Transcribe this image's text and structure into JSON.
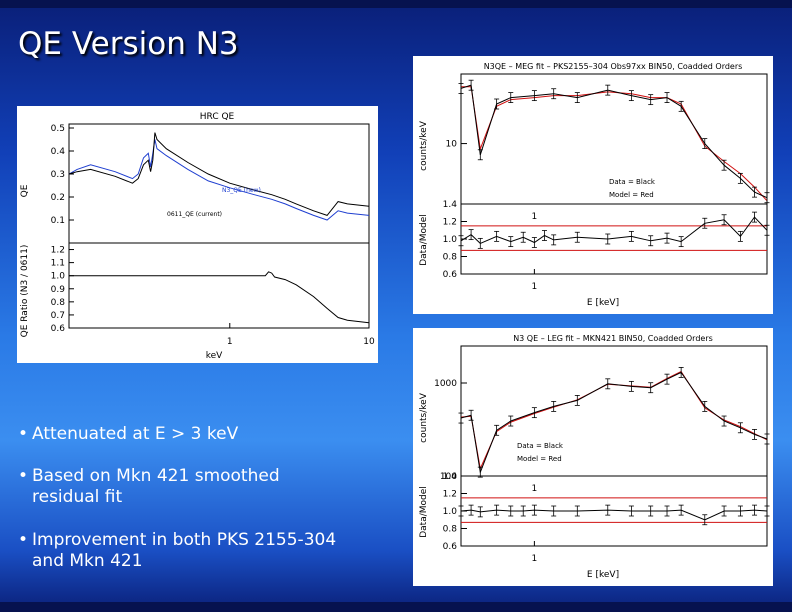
{
  "slide": {
    "title": "QE Version N3",
    "bullets": [
      "Attenuated at E > 3 keV",
      "Based on Mkn 421 smoothed residual fit",
      "Improvement in both PKS 2155-304 and Mkn 421"
    ]
  },
  "chart_data": [
    {
      "type": "line",
      "title": "HRC QE",
      "xlabel": "keV",
      "x_scale": "log",
      "xlim": [
        0.07,
        10
      ],
      "x_tick_labels": [
        "1",
        "10"
      ],
      "top": {
        "ylabel": "QE",
        "ylim": [
          0,
          0.5
        ],
        "y_tick_labels": [
          "0.5",
          "0.4",
          "0.3",
          "0.2",
          "0.1"
        ],
        "series": [
          {
            "name": "N3_QE (new)",
            "color": "#1f3fd0",
            "x": [
              0.07,
              0.08,
              0.1,
              0.15,
              0.2,
              0.22,
              0.24,
              0.26,
              0.27,
              0.28,
              0.29,
              0.3,
              0.35,
              0.5,
              0.7,
              1.0,
              1.5,
              2.0,
              2.5,
              3.0,
              4.0,
              5.0,
              6.0,
              7.0,
              10.0
            ],
            "y": [
              0.3,
              0.32,
              0.34,
              0.31,
              0.28,
              0.3,
              0.37,
              0.39,
              0.33,
              0.39,
              0.45,
              0.41,
              0.38,
              0.32,
              0.27,
              0.24,
              0.21,
              0.19,
              0.17,
              0.15,
              0.12,
              0.1,
              0.14,
              0.13,
              0.12
            ]
          },
          {
            "name": "0611_QE (current)",
            "color": "#000000",
            "x": [
              0.07,
              0.08,
              0.1,
              0.15,
              0.2,
              0.22,
              0.24,
              0.26,
              0.27,
              0.28,
              0.29,
              0.3,
              0.35,
              0.5,
              0.7,
              1.0,
              1.5,
              2.0,
              2.5,
              3.0,
              4.0,
              5.0,
              6.0,
              7.0,
              10.0
            ],
            "y": [
              0.3,
              0.31,
              0.32,
              0.29,
              0.26,
              0.28,
              0.34,
              0.36,
              0.31,
              0.36,
              0.48,
              0.45,
              0.41,
              0.35,
              0.3,
              0.26,
              0.23,
              0.21,
              0.19,
              0.17,
              0.14,
              0.12,
              0.18,
              0.17,
              0.16
            ]
          }
        ]
      },
      "bottom": {
        "ylabel": "QE Ratio (N3 / 0611)",
        "ylim": [
          0.6,
          1.25
        ],
        "y_tick_labels": [
          "1.2",
          "1.1",
          "1.0",
          "0.9",
          "0.8",
          "0.7",
          "0.6"
        ],
        "series": [
          {
            "name": "ratio",
            "color": "#000000",
            "x": [
              0.07,
              0.1,
              0.2,
              0.5,
              1.0,
              1.5,
              1.8,
              1.9,
              2.0,
              2.1,
              2.5,
              3.0,
              4.0,
              5.0,
              6.0,
              7.0,
              10.0
            ],
            "y": [
              1.0,
              1.0,
              1.0,
              1.0,
              1.0,
              1.0,
              1.0,
              1.03,
              1.02,
              0.99,
              0.97,
              0.93,
              0.84,
              0.75,
              0.68,
              0.66,
              0.64
            ]
          }
        ]
      }
    },
    {
      "type": "line",
      "title": "N3QE – MEG fit – PKS2155–304 Obs97xx BIN50, Coadded Orders",
      "xlabel": "E [keV]",
      "x_scale": "log",
      "xlim": [
        0.5,
        9
      ],
      "legend": [
        "Data = Black",
        "Model = Red"
      ],
      "top": {
        "ylabel": "counts/keV",
        "y_scale": "log",
        "ylim": [
          3,
          40
        ],
        "y_tick_labels": [
          "10"
        ],
        "series": [
          {
            "name": "Data",
            "color": "#000000",
            "x": [
              0.5,
              0.55,
              0.6,
              0.7,
              0.8,
              1.0,
              1.2,
              1.5,
              2.0,
              2.5,
              3.0,
              3.5,
              4.0,
              5.0,
              6.0,
              7.0,
              8.0,
              9.0
            ],
            "y": [
              30,
              32,
              8,
              22,
              25,
              26,
              27,
              25,
              29,
              26,
              24,
              25,
              21,
              10,
              6.5,
              5,
              3.8,
              3.4
            ]
          },
          {
            "name": "Model",
            "color": "#d01010",
            "x": [
              0.5,
              0.55,
              0.6,
              0.7,
              0.8,
              1.0,
              1.2,
              1.5,
              2.0,
              2.5,
              3.0,
              3.5,
              4.0,
              5.0,
              6.0,
              7.0,
              8.0,
              9.0
            ],
            "y": [
              31,
              31,
              9,
              21,
              24,
              25,
              26,
              26,
              28,
              27,
              25,
              25,
              22,
              9.5,
              7,
              5.5,
              4.2,
              3.2
            ]
          }
        ]
      },
      "bottom": {
        "ylabel": "Data/Model",
        "ylim": [
          0.6,
          1.4
        ],
        "y_tick_labels": [
          "1.4",
          "1.2",
          "1.0",
          "0.8",
          "0.6"
        ],
        "ref_lines": [
          0.87,
          1.15
        ],
        "top_tick_label": "1",
        "x_tick_label": "1",
        "series": [
          {
            "name": "ratio",
            "color": "#000000",
            "x": [
              0.5,
              0.55,
              0.6,
              0.7,
              0.8,
              0.9,
              1.0,
              1.1,
              1.2,
              1.5,
              2.0,
              2.5,
              3.0,
              3.5,
              4.0,
              5.0,
              6.0,
              7.0,
              8.0,
              9.0
            ],
            "y": [
              0.98,
              1.05,
              0.95,
              1.03,
              0.97,
              1.02,
              0.96,
              1.04,
              0.99,
              1.02,
              1.0,
              1.03,
              0.98,
              1.01,
              0.97,
              1.18,
              1.22,
              1.03,
              1.25,
              1.1
            ]
          }
        ]
      }
    },
    {
      "type": "line",
      "title": "N3 QE – LEG fit – MKN421 BIN50, Coadded Orders",
      "xlabel": "E [keV]",
      "x_scale": "log",
      "xlim": [
        0.5,
        9
      ],
      "legend": [
        "Data = Black",
        "Model = Red"
      ],
      "top": {
        "ylabel": "counts/keV",
        "y_scale": "log",
        "ylim": [
          100,
          2500
        ],
        "y_tick_labels": [
          "1000",
          "100"
        ],
        "series": [
          {
            "name": "Data",
            "color": "#000000",
            "x": [
              0.5,
              0.55,
              0.6,
              0.7,
              0.8,
              1.0,
              1.2,
              1.5,
              2.0,
              2.5,
              3.0,
              3.5,
              4.0,
              5.0,
              6.0,
              7.0,
              8.0,
              9.0
            ],
            "y": [
              420,
              450,
              110,
              310,
              390,
              480,
              560,
              650,
              980,
              920,
              890,
              1100,
              1300,
              560,
              390,
              330,
              280,
              250
            ]
          },
          {
            "name": "Model",
            "color": "#d01010",
            "x": [
              0.5,
              0.55,
              0.6,
              0.7,
              0.8,
              1.0,
              1.2,
              1.5,
              2.0,
              2.5,
              3.0,
              3.5,
              4.0,
              5.0,
              6.0,
              7.0,
              8.0,
              9.0
            ],
            "y": [
              430,
              440,
              120,
              300,
              380,
              470,
              550,
              660,
              970,
              930,
              900,
              1120,
              1330,
              540,
              400,
              340,
              285,
              245
            ]
          }
        ]
      },
      "bottom": {
        "ylabel": "Data/Model",
        "ylim": [
          0.6,
          1.4
        ],
        "y_tick_labels": [
          "1.4",
          "1.2",
          "1.0",
          "0.8",
          "0.6"
        ],
        "ref_lines": [
          0.87,
          1.15
        ],
        "top_tick_label": "1",
        "x_tick_label": "1",
        "series": [
          {
            "name": "ratio",
            "color": "#000000",
            "x": [
              0.5,
              0.55,
              0.6,
              0.7,
              0.8,
              0.9,
              1.0,
              1.2,
              1.5,
              2.0,
              2.5,
              3.0,
              3.5,
              4.0,
              5.0,
              6.0,
              7.0,
              8.0,
              9.0
            ],
            "y": [
              1.0,
              1.01,
              0.99,
              1.01,
              1.0,
              1.0,
              1.01,
              1.0,
              1.0,
              1.01,
              1.0,
              1.0,
              1.0,
              1.01,
              0.9,
              1.0,
              1.0,
              1.01,
              1.0
            ]
          }
        ]
      }
    }
  ]
}
